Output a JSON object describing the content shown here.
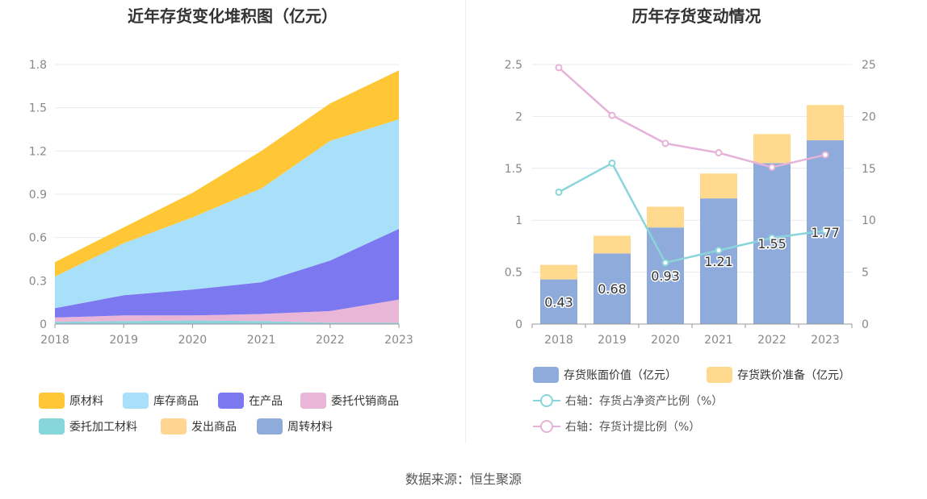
{
  "left_title": "近年存货变化堆积图（亿元）",
  "right_title": "历年存货变动情况",
  "source": "数据来源：恒生聚源",
  "colors": {
    "raw_material": "#ffc736",
    "finished_goods": "#a8e0fa",
    "wip": "#7b78f0",
    "consigned_sales": "#eab6d8",
    "consigned_processing": "#86d6dc",
    "goods_shipped": "#ffd591",
    "turnover_materials": "#8eabdb",
    "book_value_bar": "#8eabdb",
    "provision_bar": "#ffd98e",
    "ratio_line": "#89d5da",
    "provision_ratio_line": "#e6b3d8"
  },
  "left_legend": [
    {
      "label": "原材料",
      "color_key": "raw_material"
    },
    {
      "label": "库存商品",
      "color_key": "finished_goods"
    },
    {
      "label": "在产品",
      "color_key": "wip"
    },
    {
      "label": "委托代销商品",
      "color_key": "consigned_sales"
    },
    {
      "label": "委托加工材料",
      "color_key": "consigned_processing"
    },
    {
      "label": "发出商品",
      "color_key": "goods_shipped"
    },
    {
      "label": "周转材料",
      "color_key": "turnover_materials"
    }
  ],
  "right_legend": [
    {
      "label": "存货账面价值（亿元）",
      "type": "bar",
      "color_key": "book_value_bar"
    },
    {
      "label": "存货跌价准备（亿元）",
      "type": "bar",
      "color_key": "provision_bar"
    },
    {
      "label": "右轴：存货占净资产比例（%）",
      "type": "line",
      "color_key": "ratio_line"
    },
    {
      "label": "右轴：存货计提比例（%）",
      "type": "line",
      "color_key": "provision_ratio_line"
    }
  ],
  "chart_data": [
    {
      "type": "area",
      "stacked": true,
      "title": "近年存货变化堆积图（亿元）",
      "x": [
        "2018",
        "2019",
        "2020",
        "2021",
        "2022",
        "2023"
      ],
      "ylim": [
        0,
        1.8
      ],
      "yticks": [
        "0",
        "0.3",
        "0.6",
        "0.9",
        "1.2",
        "1.5",
        "1.8"
      ],
      "grid": true,
      "legend_position": "bottom",
      "series": [
        {
          "name": "周转材料",
          "color_key": "turnover_materials",
          "values": [
            0.005,
            0.005,
            0.005,
            0.005,
            0.005,
            0.005
          ]
        },
        {
          "name": "委托加工材料",
          "color_key": "consigned_processing",
          "values": [
            0.01,
            0.015,
            0.02,
            0.015,
            0.005,
            0.005
          ]
        },
        {
          "name": "委托代销商品",
          "color_key": "consigned_sales",
          "values": [
            0.03,
            0.04,
            0.035,
            0.05,
            0.08,
            0.16
          ]
        },
        {
          "name": "发出商品",
          "color_key": "goods_shipped",
          "values": [
            0.0,
            0.0,
            0.0,
            0.0,
            0.0,
            0.0
          ]
        },
        {
          "name": "在产品",
          "color_key": "wip",
          "values": [
            0.065,
            0.14,
            0.18,
            0.22,
            0.35,
            0.49
          ]
        },
        {
          "name": "库存商品",
          "color_key": "finished_goods",
          "values": [
            0.22,
            0.36,
            0.5,
            0.65,
            0.83,
            0.76
          ]
        },
        {
          "name": "原材料",
          "color_key": "raw_material",
          "values": [
            0.1,
            0.11,
            0.17,
            0.26,
            0.26,
            0.34
          ]
        }
      ]
    },
    {
      "type": "bar",
      "stacked": true,
      "title": "历年存货变动情况",
      "x": [
        "2018",
        "2019",
        "2020",
        "2021",
        "2022",
        "2023"
      ],
      "ylim": [
        0,
        2.5
      ],
      "yticks": [
        "0",
        "0.5",
        "1",
        "1.5",
        "2",
        "2.5"
      ],
      "y2lim": [
        0,
        25
      ],
      "y2ticks": [
        "0",
        "5",
        "10",
        "15",
        "20",
        "25"
      ],
      "grid": true,
      "legend_position": "bottom",
      "series": [
        {
          "name": "存货账面价值（亿元）",
          "type": "bar",
          "color_key": "book_value_bar",
          "values": [
            0.43,
            0.68,
            0.93,
            1.21,
            1.55,
            1.77
          ],
          "labels": [
            "0.43",
            "0.68",
            "0.93",
            "1.21",
            "1.55",
            "1.77"
          ]
        },
        {
          "name": "存货跌价准备（亿元）",
          "type": "bar",
          "color_key": "provision_bar",
          "values": [
            0.14,
            0.17,
            0.2,
            0.24,
            0.28,
            0.34
          ]
        },
        {
          "name": "右轴：存货占净资产比例（%）",
          "type": "line",
          "axis": "right",
          "color_key": "ratio_line",
          "values": [
            12.7,
            15.5,
            5.9,
            7.1,
            8.3,
            9.0
          ]
        },
        {
          "name": "右轴：存货计提比例（%）",
          "type": "line",
          "axis": "right",
          "color_key": "provision_ratio_line",
          "values": [
            24.7,
            20.1,
            17.4,
            16.5,
            15.1,
            16.3
          ]
        }
      ]
    }
  ]
}
